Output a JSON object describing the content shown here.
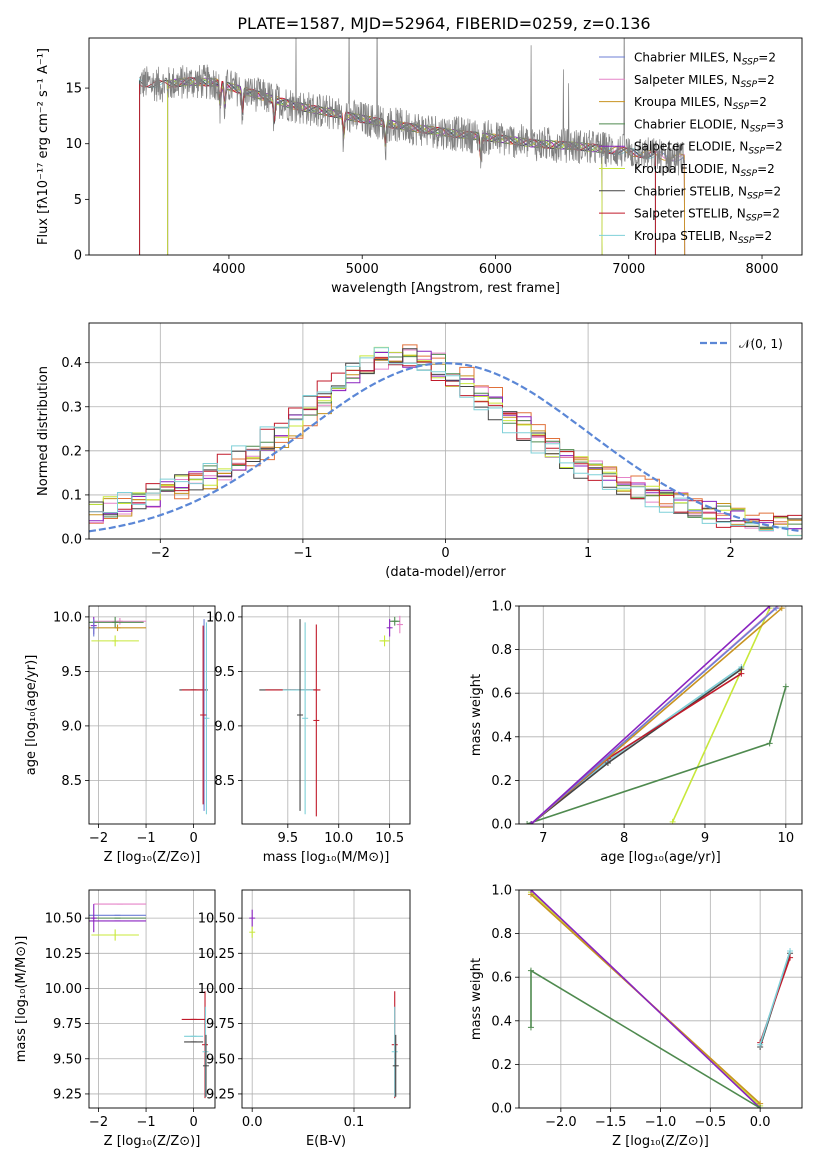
{
  "title": "PLATE=1587, MJD=52964, FIBERID=0259, z=0.136",
  "colors": {
    "Chabrier MILES": "#6e7fd4",
    "Salpeter MILES": "#e583c8",
    "Kroupa MILES": "#c89320",
    "Chabrier ELODIE": "#4f8a4f",
    "Salpeter ELODIE": "#8a23c0",
    "Kroupa ELODIE": "#c8e83a",
    "Chabrier STELIB": "#444444",
    "Salpeter STELIB": "#c01a2a",
    "Kroupa STELIB": "#7fd0d8",
    "data": "#808080",
    "fit": "#e0703a",
    "normal": "#5b87d6"
  },
  "legend_spectrum": [
    {
      "key": "Chabrier MILES",
      "pre": "Chabrier MILES, N",
      "sub": "SSP",
      "post": "=2"
    },
    {
      "key": "Salpeter MILES",
      "pre": "Salpeter MILES, N",
      "sub": "SSP",
      "post": "=2"
    },
    {
      "key": "Kroupa MILES",
      "pre": "Kroupa MILES, N",
      "sub": "SSP",
      "post": "=2"
    },
    {
      "key": "Chabrier ELODIE",
      "pre": "Chabrier ELODIE, N",
      "sub": "SSP",
      "post": "=3"
    },
    {
      "key": "Salpeter ELODIE",
      "pre": "Salpeter ELODIE, N",
      "sub": "SSP",
      "post": "=2"
    },
    {
      "key": "Kroupa ELODIE",
      "pre": "Kroupa ELODIE, N",
      "sub": "SSP",
      "post": "=2"
    },
    {
      "key": "Chabrier STELIB",
      "pre": "Chabrier STELIB, N",
      "sub": "SSP",
      "post": "=2"
    },
    {
      "key": "Salpeter STELIB",
      "pre": "Salpeter STELIB, N",
      "sub": "SSP",
      "post": "=2"
    },
    {
      "key": "Kroupa STELIB",
      "pre": "Kroupa STELIB, N",
      "sub": "SSP",
      "post": "=2"
    }
  ],
  "chart_data": [
    {
      "type": "line",
      "xlabel": "wavelength [Angstrom, rest frame]",
      "ylabel": "Flux [fλ10⁻¹⁷ erg cm⁻² s⁻¹ A⁻¹]",
      "xlim": [
        2950,
        8300
      ],
      "ylim": [
        0,
        19.5
      ],
      "xticks": [
        4000,
        5000,
        6000,
        7000,
        8000
      ],
      "yticks": [
        0,
        5,
        10,
        15
      ],
      "continuum": {
        "x": [
          3330,
          3500,
          3700,
          3900,
          4100,
          4300,
          4500,
          4800,
          5100,
          5400,
          5700,
          6000,
          6300,
          6600,
          6900,
          7100,
          7400
        ],
        "y": [
          15.5,
          15.3,
          15.6,
          15.5,
          14.8,
          14.1,
          13.4,
          12.7,
          12.0,
          11.4,
          10.9,
          10.5,
          10.0,
          9.8,
          9.4,
          9.1,
          8.7
        ]
      },
      "data_range": [
        3330,
        7420
      ],
      "model_ranges": {
        "Kroupa STELIB": [
          3330,
          7200
        ],
        "Chabrier MILES": [
          3540,
          7420
        ],
        "Salpeter MILES": [
          3540,
          7420
        ],
        "Kroupa MILES": [
          3540,
          7420
        ],
        "Chabrier ELODIE": [
          3540,
          6800
        ],
        "Salpeter ELODIE": [
          3540,
          6800
        ],
        "Kroupa ELODIE": [
          3540,
          6800
        ],
        "Chabrier STELIB": [
          3330,
          7200
        ],
        "Salpeter STELIB": [
          3330,
          7200
        ]
      },
      "absorption_lines": [
        3934,
        3969,
        4102,
        4340,
        4861,
        5175,
        5890
      ]
    },
    {
      "type": "step",
      "xlabel": "(data-model)/error",
      "ylabel": "Normed distribution",
      "xlim": [
        -2.5,
        2.5
      ],
      "ylim": [
        0,
        0.49
      ],
      "xticks": [
        -2,
        -1,
        0,
        1,
        2
      ],
      "yticks": [
        0.0,
        0.1,
        0.2,
        0.3,
        0.4
      ],
      "bin_edges_range": [
        -2.5,
        2.5
      ],
      "n_bins": 50,
      "base_curve": {
        "x": [
          -2.5,
          -2.0,
          -1.6,
          -1.3,
          -1.0,
          -0.7,
          -0.4,
          -0.15,
          0.1,
          0.4,
          0.7,
          1.0,
          1.3,
          1.6,
          2.0,
          2.5
        ],
        "y": [
          0.06,
          0.1,
          0.15,
          0.2,
          0.28,
          0.36,
          0.42,
          0.41,
          0.36,
          0.29,
          0.22,
          0.16,
          0.12,
          0.08,
          0.05,
          0.03
        ]
      },
      "legend": "𝒩(0, 1)"
    },
    {
      "type": "errorbar",
      "xlabel": "Z [log₁₀(Z/Z⊙)]",
      "ylabel": "age  [log₁₀(age/yr)]",
      "xlim": [
        -2.2,
        0.45
      ],
      "ylim": [
        8.1,
        10.1
      ],
      "xticks": [
        -2,
        -1,
        0
      ],
      "yticks": [
        8.5,
        9.0,
        9.5,
        10.0
      ],
      "points": [
        {
          "key": "Kroupa ELODIE",
          "x": -1.65,
          "y": 9.78,
          "xerr": 0.5,
          "yerr": 0.05
        },
        {
          "key": "Salpeter MILES",
          "x": -1.55,
          "y": 9.96,
          "xerr": 0.55,
          "yerr": 0.03
        },
        {
          "key": "Chabrier ELODIE",
          "x": -1.65,
          "y": 9.95,
          "xerr": 0.6,
          "yerr": 0.05
        },
        {
          "key": "Kroupa MILES",
          "x": -1.6,
          "y": 9.9,
          "xerr": 0.6,
          "yerr": 0.03
        },
        {
          "key": "Salpeter ELODIE",
          "x": -2.1,
          "y": 9.92,
          "xerr": 0.02,
          "yerr": 0.08
        },
        {
          "key": "Chabrier MILES",
          "x": -2.1,
          "y": 9.9,
          "xerr": 0.02,
          "yerr": 0.08
        },
        {
          "key": "Chabrier STELIB",
          "x": 0.0,
          "y": 9.33,
          "xerr": 0.3,
          "yerr": 0.0
        },
        {
          "key": "Salpeter STELIB",
          "x": 0.0,
          "y": 9.33,
          "xerr": 0.25,
          "yerr": 0.0
        },
        {
          "key": "Kroupa STELIB",
          "x": 0.27,
          "y": 9.07,
          "xerr": 0.02,
          "yerr": 0.88
        },
        {
          "key": "Chabrier MILES",
          "x": 0.22,
          "y": 9.1,
          "xerr": 0.0,
          "yerr": 0.88
        },
        {
          "key": "Salpeter STELIB",
          "x": 0.2,
          "y": 9.1,
          "xerr": 0.0,
          "yerr": 0.82
        }
      ]
    },
    {
      "type": "errorbar",
      "xlabel": "mass [log₁₀(M/M⊙)]",
      "ylabel": "",
      "xlim": [
        9.05,
        10.7
      ],
      "ylim": [
        8.1,
        10.1
      ],
      "xticks": [
        9.5,
        10.0,
        10.5
      ],
      "yticks": [
        8.5,
        9.0,
        9.5,
        10.0
      ],
      "points": [
        {
          "key": "Chabrier STELIB",
          "x": 9.5,
          "y": 9.33,
          "xerr": 0.28,
          "yerr": 0.0
        },
        {
          "key": "Salpeter STELIB",
          "x": 9.55,
          "y": 9.33,
          "xerr": 0.27,
          "yerr": 0.0
        },
        {
          "key": "Kroupa STELIB",
          "x": 9.6,
          "y": 9.33,
          "xerr": 0.15,
          "yerr": 0.0
        },
        {
          "key": "Chabrier STELIB",
          "x": 9.62,
          "y": 9.1,
          "xerr": 0.0,
          "yerr": 0.88
        },
        {
          "key": "Kroupa STELIB",
          "x": 9.67,
          "y": 9.07,
          "xerr": 0.0,
          "yerr": 0.88
        },
        {
          "key": "Salpeter STELIB",
          "x": 9.78,
          "y": 9.05,
          "xerr": 0.0,
          "yerr": 0.88
        },
        {
          "key": "Kroupa ELODIE",
          "x": 10.45,
          "y": 9.78,
          "xerr": 0.05,
          "yerr": 0.05
        },
        {
          "key": "Salpeter MILES",
          "x": 10.6,
          "y": 9.93,
          "xerr": 0.03,
          "yerr": 0.08
        },
        {
          "key": "Chabrier ELODIE",
          "x": 10.55,
          "y": 9.96,
          "xerr": 0.05,
          "yerr": 0.04
        },
        {
          "key": "Salpeter ELODIE",
          "x": 10.5,
          "y": 9.9,
          "xerr": 0.01,
          "yerr": 0.08
        }
      ]
    },
    {
      "type": "line",
      "xlabel": "age  [log₁₀(age/yr)]",
      "ylabel": "mass weight",
      "xlim": [
        6.7,
        10.2
      ],
      "ylim": [
        0,
        1.0
      ],
      "xticks": [
        7,
        8,
        9,
        10
      ],
      "yticks": [
        0.0,
        0.2,
        0.4,
        0.6,
        0.8,
        1.0
      ],
      "series": [
        {
          "key": "Kroupa ELODIE",
          "x": [
            8.6,
            9.8
          ],
          "y": [
            0.01,
            0.99
          ]
        },
        {
          "key": "Chabrier ELODIE",
          "x": [
            6.8,
            9.8,
            10.0
          ],
          "y": [
            0.0,
            0.37,
            0.63
          ]
        },
        {
          "key": "Kroupa STELIB",
          "x": [
            6.85,
            7.8,
            9.45
          ],
          "y": [
            0.0,
            0.29,
            0.72
          ]
        },
        {
          "key": "Chabrier STELIB",
          "x": [
            6.85,
            7.8,
            9.45
          ],
          "y": [
            0.0,
            0.28,
            0.71
          ]
        },
        {
          "key": "Salpeter STELIB",
          "x": [
            6.85,
            7.8,
            9.45
          ],
          "y": [
            0.0,
            0.3,
            0.69
          ]
        },
        {
          "key": "Kroupa MILES",
          "x": [
            6.85,
            9.95
          ],
          "y": [
            0.0,
            0.99
          ]
        },
        {
          "key": "Salpeter MILES",
          "x": [
            6.85,
            9.9
          ],
          "y": [
            0.0,
            1.0
          ]
        },
        {
          "key": "Chabrier MILES",
          "x": [
            6.85,
            9.88
          ],
          "y": [
            0.0,
            0.99
          ]
        },
        {
          "key": "Salpeter ELODIE",
          "x": [
            6.85,
            9.8
          ],
          "y": [
            0.0,
            1.0
          ]
        }
      ]
    },
    {
      "type": "errorbar",
      "xlabel": "Z [log₁₀(Z/Z⊙)]",
      "ylabel": "mass [log₁₀(M/M⊙)]",
      "xlim": [
        -2.2,
        0.45
      ],
      "ylim": [
        9.15,
        10.7
      ],
      "xticks": [
        -2,
        -1,
        0
      ],
      "yticks": [
        9.25,
        9.5,
        9.75,
        10.0,
        10.25,
        10.5
      ],
      "points": [
        {
          "key": "Salpeter MILES",
          "x": -1.55,
          "y": 10.6,
          "xerr": 0.55,
          "yerr": 0.0
        },
        {
          "key": "Chabrier MILES",
          "x": -1.6,
          "y": 10.52,
          "xerr": 0.6,
          "yerr": 0.0
        },
        {
          "key": "Chabrier ELODIE",
          "x": -1.6,
          "y": 10.5,
          "xerr": 0.6,
          "yerr": 0.0
        },
        {
          "key": "Salpeter ELODIE",
          "x": -1.6,
          "y": 10.48,
          "xerr": 0.6,
          "yerr": 0.0
        },
        {
          "key": "Kroupa ELODIE",
          "x": -1.65,
          "y": 10.38,
          "xerr": 0.5,
          "yerr": 0.04
        },
        {
          "key": "Salpeter ELODIE",
          "x": -2.1,
          "y": 10.5,
          "xerr": 0.02,
          "yerr": 0.1
        },
        {
          "key": "Salpeter STELIB",
          "x": 0.0,
          "y": 9.78,
          "xerr": 0.25,
          "yerr": 0.0
        },
        {
          "key": "Kroupa STELIB",
          "x": 0.0,
          "y": 9.66,
          "xerr": 0.2,
          "yerr": 0.0
        },
        {
          "key": "Chabrier STELIB",
          "x": 0.0,
          "y": 9.62,
          "xerr": 0.2,
          "yerr": 0.0
        },
        {
          "key": "Salpeter STELIB",
          "x": 0.24,
          "y": 9.6,
          "xerr": 0.0,
          "yerr": 0.38
        },
        {
          "key": "Kroupa STELIB",
          "x": 0.25,
          "y": 9.55,
          "xerr": 0.0,
          "yerr": 0.32
        },
        {
          "key": "Chabrier STELIB",
          "x": 0.26,
          "y": 9.45,
          "xerr": 0.0,
          "yerr": 0.22
        }
      ]
    },
    {
      "type": "errorbar",
      "xlabel": "E(B-V)",
      "ylabel": "",
      "xlim": [
        -0.01,
        0.155
      ],
      "ylim": [
        9.15,
        10.7
      ],
      "xticks": [
        0.0,
        0.1
      ],
      "yticks": [
        9.25,
        9.5,
        9.75,
        10.0,
        10.25,
        10.5
      ],
      "points": [
        {
          "key": "Salpeter ELODIE",
          "x": 0.0,
          "y": 10.5,
          "xerr": 0.0,
          "yerr": 0.06
        },
        {
          "key": "Kroupa ELODIE",
          "x": 0.0,
          "y": 10.4,
          "xerr": 0.0,
          "yerr": 0.04
        },
        {
          "key": "Salpeter STELIB",
          "x": 0.14,
          "y": 9.6,
          "xerr": 0.0,
          "yerr": 0.38
        },
        {
          "key": "Kroupa STELIB",
          "x": 0.14,
          "y": 9.55,
          "xerr": 0.0,
          "yerr": 0.32
        },
        {
          "key": "Chabrier STELIB",
          "x": 0.141,
          "y": 9.45,
          "xerr": 0.0,
          "yerr": 0.22
        }
      ]
    },
    {
      "type": "line",
      "xlabel": "Z [log₁₀(Z/Z⊙)]",
      "ylabel": "mass weight",
      "xlim": [
        -2.42,
        0.42
      ],
      "ylim": [
        0,
        1.0
      ],
      "xticks": [
        -2.0,
        -1.5,
        -1.0,
        -0.5,
        0.0
      ],
      "yticks": [
        0.0,
        0.2,
        0.4,
        0.6,
        0.8,
        1.0
      ],
      "series": [
        {
          "key": "Kroupa ELODIE",
          "x": [
            -2.3,
            0.0
          ],
          "y": [
            0.99,
            0.01
          ]
        },
        {
          "key": "Kroupa MILES",
          "x": [
            -2.3,
            0.0
          ],
          "y": [
            0.98,
            0.02
          ]
        },
        {
          "key": "Salpeter ELODIE",
          "x": [
            -2.3,
            0.0
          ],
          "y": [
            1.0,
            0.0
          ]
        },
        {
          "key": "Chabrier ELODIE",
          "x": [
            -2.3,
            -2.3,
            0.0
          ],
          "y": [
            0.37,
            0.63,
            0.0
          ]
        },
        {
          "key": "Chabrier STELIB",
          "x": [
            0.0,
            0.3
          ],
          "y": [
            0.28,
            0.71
          ]
        },
        {
          "key": "Salpeter STELIB",
          "x": [
            0.0,
            0.3
          ],
          "y": [
            0.3,
            0.69
          ]
        },
        {
          "key": "Kroupa STELIB",
          "x": [
            0.0,
            0.3
          ],
          "y": [
            0.29,
            0.72
          ]
        }
      ]
    }
  ]
}
